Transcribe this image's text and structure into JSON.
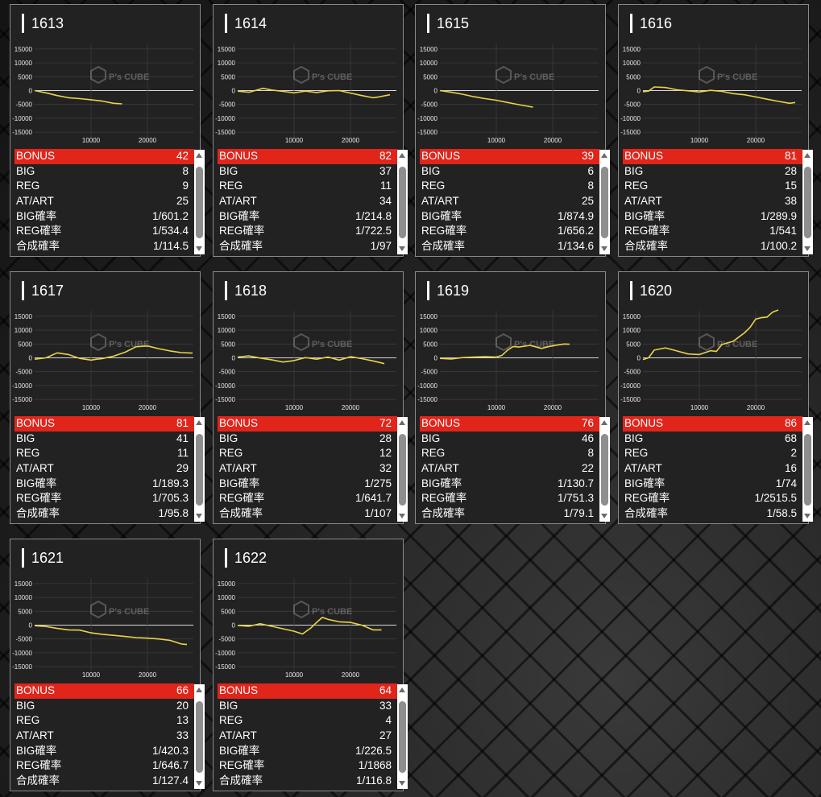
{
  "row_labels": [
    "BONUS",
    "BIG",
    "REG",
    "AT/ART",
    "BIG確率",
    "REG確率",
    "合成確率"
  ],
  "watermark": {
    "main": "P's CUBE"
  },
  "colors": {
    "bonus_row": "#e1251b",
    "line": "#e8d44a",
    "card_bg": "#222222",
    "zero_line": "#d8d8d8"
  },
  "icons": {
    "scroll_up": "triangle-up-icon",
    "scroll_down": "triangle-down-icon",
    "watermark": "cube-logo-icon"
  },
  "machines": [
    {
      "id": "1613",
      "stats": [
        "42",
        "8",
        "9",
        "25",
        "1/601.2",
        "1/534.4",
        "1/114.5"
      ]
    },
    {
      "id": "1614",
      "stats": [
        "82",
        "37",
        "11",
        "34",
        "1/214.8",
        "1/722.5",
        "1/97"
      ]
    },
    {
      "id": "1615",
      "stats": [
        "39",
        "6",
        "8",
        "25",
        "1/874.9",
        "1/656.2",
        "1/134.6"
      ]
    },
    {
      "id": "1616",
      "stats": [
        "81",
        "28",
        "15",
        "38",
        "1/289.9",
        "1/541",
        "1/100.2"
      ]
    },
    {
      "id": "1617",
      "stats": [
        "81",
        "41",
        "11",
        "29",
        "1/189.3",
        "1/705.3",
        "1/95.8"
      ]
    },
    {
      "id": "1618",
      "stats": [
        "72",
        "28",
        "12",
        "32",
        "1/275",
        "1/641.7",
        "1/107"
      ]
    },
    {
      "id": "1619",
      "stats": [
        "76",
        "46",
        "8",
        "22",
        "1/130.7",
        "1/751.3",
        "1/79.1"
      ]
    },
    {
      "id": "1620",
      "stats": [
        "86",
        "68",
        "2",
        "16",
        "1/74",
        "1/2515.5",
        "1/58.5"
      ]
    },
    {
      "id": "1621",
      "stats": [
        "66",
        "20",
        "13",
        "33",
        "1/420.3",
        "1/646.7",
        "1/127.4"
      ]
    },
    {
      "id": "1622",
      "stats": [
        "64",
        "33",
        "4",
        "27",
        "1/226.5",
        "1/1868",
        "1/116.8"
      ]
    }
  ],
  "chart_data": [
    {
      "type": "line",
      "machine": "1613",
      "xlim": [
        0,
        30000
      ],
      "ylim": [
        -17000,
        17000
      ],
      "x_ticks": [
        10000,
        20000
      ],
      "y_ticks": [
        15000,
        10000,
        5000,
        0,
        -5000,
        -10000,
        -15000
      ],
      "x": [
        0,
        2000,
        4000,
        6000,
        8000,
        10000,
        12000,
        14000,
        15500
      ],
      "y": [
        0,
        -800,
        -1800,
        -2600,
        -2900,
        -3300,
        -3800,
        -4600,
        -4800
      ]
    },
    {
      "type": "line",
      "machine": "1614",
      "xlim": [
        0,
        30000
      ],
      "ylim": [
        -17000,
        17000
      ],
      "x_ticks": [
        10000,
        20000
      ],
      "y_ticks": [
        15000,
        10000,
        5000,
        0,
        -5000,
        -10000,
        -15000
      ],
      "x": [
        0,
        2000,
        4500,
        6000,
        8000,
        10000,
        12000,
        14000,
        16000,
        18000,
        20000,
        22000,
        24000,
        25000,
        27000
      ],
      "y": [
        -200,
        -600,
        800,
        200,
        -300,
        -800,
        -200,
        -700,
        -100,
        0,
        -900,
        -1800,
        -2600,
        -2300,
        -1500
      ]
    },
    {
      "type": "line",
      "machine": "1615",
      "xlim": [
        0,
        30000
      ],
      "ylim": [
        -17000,
        17000
      ],
      "x_ticks": [
        10000,
        20000
      ],
      "y_ticks": [
        15000,
        10000,
        5000,
        0,
        -5000,
        -10000,
        -15000
      ],
      "x": [
        0,
        2000,
        4000,
        6000,
        8000,
        10000,
        12000,
        14000,
        16000,
        16500
      ],
      "y": [
        0,
        -600,
        -1300,
        -2200,
        -2900,
        -3500,
        -4300,
        -5100,
        -5800,
        -6000
      ]
    },
    {
      "type": "line",
      "machine": "1616",
      "xlim": [
        0,
        30000
      ],
      "ylim": [
        -17000,
        17000
      ],
      "x_ticks": [
        10000,
        20000
      ],
      "y_ticks": [
        15000,
        10000,
        5000,
        0,
        -5000,
        -10000,
        -15000
      ],
      "x": [
        0,
        1000,
        2000,
        4000,
        6000,
        8000,
        10000,
        12000,
        14000,
        16000,
        18000,
        20000,
        22000,
        24000,
        26000,
        27000
      ],
      "y": [
        -400,
        -200,
        1300,
        1100,
        300,
        -100,
        -500,
        100,
        -300,
        -1100,
        -1500,
        -2300,
        -3100,
        -3900,
        -4600,
        -4300
      ]
    },
    {
      "type": "line",
      "machine": "1617",
      "xlim": [
        0,
        30000
      ],
      "ylim": [
        -17000,
        17000
      ],
      "x_ticks": [
        10000,
        20000
      ],
      "y_ticks": [
        15000,
        10000,
        5000,
        0,
        -5000,
        -10000,
        -15000
      ],
      "x": [
        0,
        2000,
        4000,
        6000,
        8000,
        10000,
        11000,
        12000,
        14000,
        16000,
        18000,
        20000,
        22000,
        24000,
        26000,
        28000
      ],
      "y": [
        -500,
        0,
        1800,
        1200,
        -200,
        -800,
        -500,
        -300,
        600,
        2000,
        4000,
        4300,
        3300,
        2500,
        1900,
        1700
      ]
    },
    {
      "type": "line",
      "machine": "1618",
      "xlim": [
        0,
        30000
      ],
      "ylim": [
        -17000,
        17000
      ],
      "x_ticks": [
        10000,
        20000
      ],
      "y_ticks": [
        15000,
        10000,
        5000,
        0,
        -5000,
        -10000,
        -15000
      ],
      "x": [
        0,
        2000,
        4000,
        6000,
        8000,
        10000,
        12000,
        14000,
        16000,
        18000,
        20000,
        22000,
        24000,
        26000
      ],
      "y": [
        300,
        700,
        -100,
        -700,
        -1500,
        -1000,
        100,
        -500,
        300,
        -800,
        400,
        -300,
        -1100,
        -2100
      ]
    },
    {
      "type": "line",
      "machine": "1619",
      "xlim": [
        0,
        30000
      ],
      "ylim": [
        -17000,
        17000
      ],
      "x_ticks": [
        10000,
        20000
      ],
      "y_ticks": [
        15000,
        10000,
        5000,
        0,
        -5000,
        -10000,
        -15000
      ],
      "x": [
        0,
        2000,
        4000,
        6000,
        8000,
        10000,
        11000,
        12000,
        13000,
        14000,
        16000,
        18000,
        20000,
        22000,
        23000
      ],
      "y": [
        -200,
        -400,
        100,
        300,
        400,
        300,
        900,
        2800,
        4100,
        3900,
        4500,
        3400,
        4400,
        5000,
        4900
      ]
    },
    {
      "type": "line",
      "machine": "1620",
      "xlim": [
        0,
        30000
      ],
      "ylim": [
        -17000,
        17000
      ],
      "x_ticks": [
        10000,
        20000
      ],
      "y_ticks": [
        15000,
        10000,
        5000,
        0,
        -5000,
        -10000,
        -15000
      ],
      "x": [
        0,
        1000,
        2000,
        4000,
        6000,
        8000,
        10000,
        12000,
        13000,
        14000,
        16000,
        17000,
        18000,
        19000,
        20000,
        21000,
        22000,
        23000,
        24000
      ],
      "y": [
        -600,
        0,
        2800,
        3600,
        2500,
        1400,
        1200,
        2600,
        2300,
        4800,
        6000,
        7500,
        9000,
        11000,
        14000,
        14500,
        14700,
        16500,
        17300
      ]
    },
    {
      "type": "line",
      "machine": "1621",
      "xlim": [
        0,
        30000
      ],
      "ylim": [
        -17000,
        17000
      ],
      "x_ticks": [
        10000,
        20000
      ],
      "y_ticks": [
        15000,
        10000,
        5000,
        0,
        -5000,
        -10000,
        -15000
      ],
      "x": [
        0,
        2000,
        4000,
        6000,
        8000,
        10000,
        12000,
        14000,
        16000,
        18000,
        20000,
        22000,
        24000,
        26000,
        27000
      ],
      "y": [
        -200,
        -500,
        -1200,
        -1700,
        -1800,
        -2800,
        -3300,
        -3700,
        -4100,
        -4500,
        -4700,
        -5000,
        -5500,
        -6800,
        -7000
      ]
    },
    {
      "type": "line",
      "machine": "1622",
      "xlim": [
        0,
        30000
      ],
      "ylim": [
        -17000,
        17000
      ],
      "x_ticks": [
        10000,
        20000
      ],
      "y_ticks": [
        15000,
        10000,
        5000,
        0,
        -5000,
        -10000,
        -15000
      ],
      "x": [
        0,
        2000,
        4000,
        6000,
        8000,
        10000,
        11500,
        13000,
        14000,
        15000,
        16000,
        18000,
        20000,
        22000,
        24000,
        25500
      ],
      "y": [
        -100,
        -400,
        500,
        -400,
        -1300,
        -2200,
        -3200,
        -1000,
        1000,
        2800,
        2100,
        1200,
        1000,
        0,
        -1700,
        -1700
      ]
    }
  ]
}
